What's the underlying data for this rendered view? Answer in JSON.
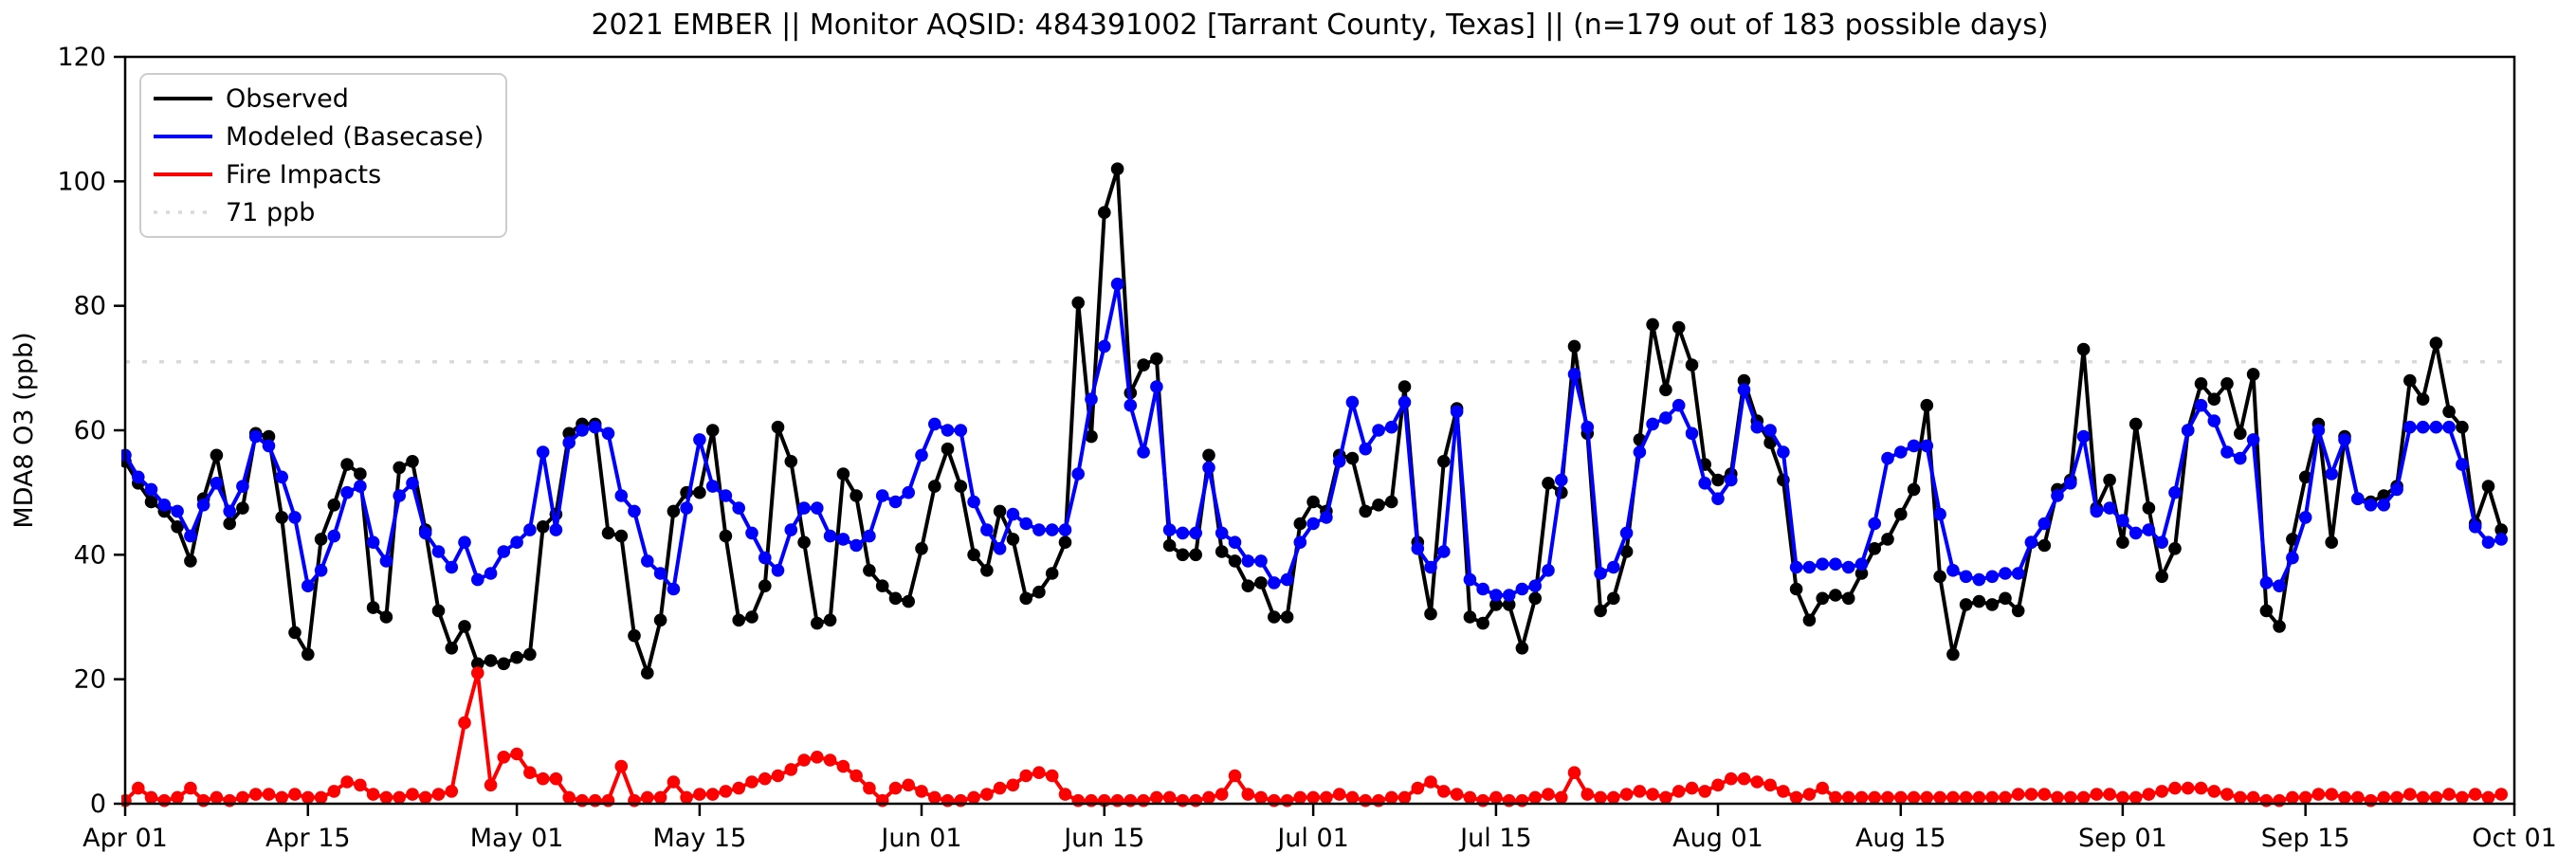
{
  "chart_data": {
    "type": "line",
    "title": "2021 EMBER || Monitor AQSID: 484391002 [Tarrant County, Texas] || (n=179 out of 183 possible days)",
    "ylabel": "MDA8 O3 (ppb)",
    "xlabel": "",
    "ylim": [
      0,
      120
    ],
    "y_ticks": [
      0,
      20,
      40,
      60,
      80,
      100,
      120
    ],
    "x_range_days": 183,
    "x_ticks": [
      {
        "label": "Apr 01",
        "day": 0
      },
      {
        "label": "Apr 15",
        "day": 14
      },
      {
        "label": "May 01",
        "day": 30
      },
      {
        "label": "May 15",
        "day": 44
      },
      {
        "label": "Jun 01",
        "day": 61
      },
      {
        "label": "Jun 15",
        "day": 75
      },
      {
        "label": "Jul 01",
        "day": 91
      },
      {
        "label": "Jul 15",
        "day": 105
      },
      {
        "label": "Aug 01",
        "day": 122
      },
      {
        "label": "Aug 15",
        "day": 136
      },
      {
        "label": "Sep 01",
        "day": 153
      },
      {
        "label": "Sep 15",
        "day": 167
      },
      {
        "label": "Oct 01",
        "day": 183
      }
    ],
    "threshold": {
      "value": 71,
      "label": "71 ppb",
      "color": "#d9d9d9",
      "style": "dotted"
    },
    "legend_position": "upper-left",
    "grid": false,
    "series": [
      {
        "name": "Observed",
        "color": "#000000",
        "marker": "circle",
        "values": [
          55,
          51.5,
          48.5,
          47,
          44.5,
          39,
          49,
          56,
          45,
          47.5,
          59.5,
          59,
          46,
          27.5,
          24,
          42.5,
          48,
          54.5,
          53,
          31.5,
          30,
          54,
          55,
          44,
          31,
          25,
          28.5,
          22.5,
          23,
          22.5,
          23.5,
          24,
          44.5,
          46.5,
          59.5,
          61,
          61,
          43.5,
          43,
          27,
          21,
          29.5,
          47,
          50,
          50,
          60,
          43,
          29.5,
          30,
          35,
          60.5,
          55,
          42,
          29,
          29.5,
          53,
          49.5,
          37.5,
          35,
          33,
          32.5,
          41,
          51,
          57,
          51,
          40,
          37.5,
          47,
          42.5,
          33,
          34,
          37,
          42,
          80.5,
          59,
          95,
          102,
          66,
          70.5,
          71.5,
          41.5,
          40,
          40,
          56,
          40.5,
          39,
          35,
          35.5,
          30,
          30,
          45,
          48.5,
          47,
          56,
          55.5,
          47,
          48,
          48.5,
          67,
          42,
          30.5,
          55,
          63.5,
          30,
          29,
          32,
          32,
          25,
          33,
          51.5,
          50,
          73.5,
          59.5,
          31,
          33,
          40.5,
          58.5,
          77,
          66.5,
          76.5,
          70.5,
          54.5,
          52,
          53,
          68,
          61.5,
          58,
          52,
          34.5,
          29.5,
          33,
          33.5,
          33,
          37,
          41,
          42.5,
          46.5,
          50.5,
          64,
          36.5,
          24,
          32,
          32.5,
          32,
          33,
          31,
          42,
          41.5,
          50.5,
          52,
          73,
          47.5,
          52,
          42,
          61,
          47.5,
          36.5,
          41,
          60,
          67.5,
          65,
          67.5,
          59.5,
          69,
          31,
          28.5,
          42.5,
          52.5,
          61,
          42,
          59,
          49,
          48.5,
          49.5,
          51,
          68,
          65,
          74,
          63,
          60.5,
          45,
          51,
          44
        ]
      },
      {
        "name": "Modeled (Basecase)",
        "color": "#0000ff",
        "marker": "circle",
        "values": [
          56,
          52.5,
          50.5,
          48,
          47,
          43,
          48,
          51.5,
          47,
          51,
          59,
          57.5,
          52.5,
          46,
          35,
          37.5,
          43,
          50,
          51,
          42,
          39,
          49.5,
          51.5,
          43.5,
          40.5,
          38,
          42,
          36,
          37,
          40.5,
          42,
          44,
          56.5,
          44,
          58,
          60,
          60.5,
          59.5,
          49.5,
          47,
          39,
          37,
          34.5,
          47.5,
          58.5,
          51,
          49.5,
          47.5,
          43.5,
          39.5,
          37.5,
          44,
          47.5,
          47.5,
          43,
          42.5,
          41.5,
          43,
          49.5,
          48.5,
          50,
          56,
          61,
          60,
          60,
          48.5,
          44,
          41,
          46.5,
          45,
          44,
          44,
          44,
          53,
          65,
          73.5,
          83.5,
          64,
          56.5,
          67,
          44,
          43.5,
          43.5,
          54,
          43.5,
          42,
          39,
          39,
          35.5,
          36,
          42,
          45,
          46,
          55,
          64.5,
          57,
          60,
          60.5,
          64.5,
          41,
          38,
          40.5,
          63,
          36,
          34.5,
          33.5,
          33.5,
          34.5,
          35,
          37.5,
          52,
          69,
          60.5,
          37,
          38,
          43.5,
          56.5,
          61,
          62,
          64,
          59.5,
          51.5,
          49,
          52,
          66.5,
          60.5,
          60,
          56.5,
          38,
          38,
          38.5,
          38.5,
          38,
          38.5,
          45,
          55.5,
          56.5,
          57.5,
          57.5,
          46.5,
          37.5,
          36.5,
          36,
          36.5,
          37,
          37,
          42,
          45,
          49.5,
          51.5,
          59,
          47,
          47.5,
          45.5,
          43.5,
          44,
          42,
          50,
          60,
          64,
          61.5,
          56.5,
          55.5,
          58.5,
          35.5,
          35,
          39.5,
          46,
          60,
          53,
          58.5,
          49,
          48,
          48,
          50.5,
          60.5,
          60.5,
          60.5,
          60.5,
          54.5,
          44.5,
          42,
          42.5
        ]
      },
      {
        "name": "Fire Impacts",
        "color": "#ff0000",
        "marker": "circle",
        "values": [
          0.5,
          2.5,
          1,
          0.5,
          1,
          2.5,
          0.5,
          1,
          0.5,
          1,
          1.5,
          1.5,
          1,
          1.5,
          1,
          1,
          2,
          3.5,
          3,
          1.5,
          1,
          1,
          1.5,
          1,
          1.5,
          2,
          13,
          21,
          3,
          7.5,
          8,
          5,
          4,
          4,
          1,
          0.5,
          0.5,
          0.5,
          6,
          0.5,
          1,
          1,
          3.5,
          1,
          1.5,
          1.5,
          2,
          2.5,
          3.5,
          4,
          4.5,
          5.5,
          7,
          7.5,
          7,
          6,
          4.5,
          2.5,
          0.5,
          2.5,
          3,
          2,
          1,
          0.5,
          0.5,
          1,
          1.5,
          2.5,
          3,
          4.5,
          5,
          4.5,
          1.5,
          0.5,
          0.5,
          0.5,
          0.5,
          0.5,
          0.5,
          1,
          1,
          0.5,
          0.5,
          1,
          1.5,
          4.5,
          1.5,
          1,
          0.5,
          0.5,
          1,
          1,
          1,
          1.5,
          1,
          0.5,
          0.5,
          1,
          1,
          2.5,
          3.5,
          2,
          1.5,
          1,
          0.5,
          1,
          0.5,
          0.5,
          1,
          1.5,
          1,
          5,
          1.5,
          1,
          1,
          1.5,
          2,
          1.5,
          1,
          2,
          2.5,
          2,
          3,
          4,
          4,
          3.5,
          3,
          2,
          1,
          1.5,
          2.5,
          1,
          1,
          1,
          1,
          1,
          1,
          1,
          1,
          1,
          1,
          1,
          1,
          1,
          1,
          1.5,
          1.5,
          1.5,
          1,
          1,
          1,
          1.5,
          1.5,
          1,
          1,
          1.5,
          2,
          2.5,
          2.5,
          2.5,
          2,
          1.5,
          1,
          1,
          0.5,
          0.5,
          1,
          1,
          1.5,
          1.5,
          1,
          1,
          0.5,
          1,
          1,
          1.5,
          1,
          1,
          1.5,
          1,
          1.5,
          1,
          1.5
        ]
      }
    ],
    "legend_items": [
      {
        "label": "Observed",
        "color": "#000000",
        "dash": "none"
      },
      {
        "label": "Modeled (Basecase)",
        "color": "#0000ff",
        "dash": "none"
      },
      {
        "label": "Fire Impacts",
        "color": "#ff0000",
        "dash": "none"
      },
      {
        "label": "71 ppb",
        "color": "#d9d9d9",
        "dash": "dotted"
      }
    ]
  }
}
